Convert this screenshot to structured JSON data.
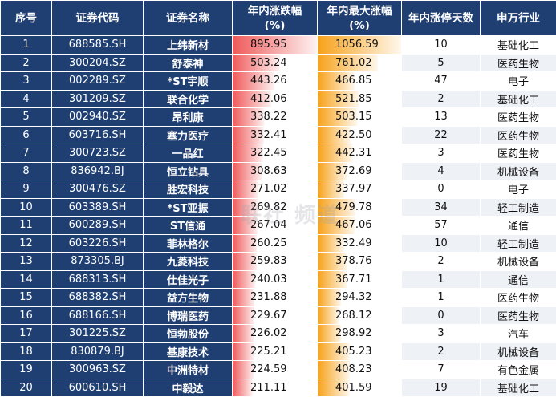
{
  "headers": {
    "seq": "序号",
    "code": "证券代码",
    "name": "证券名称",
    "chg_line1": "年内涨跌幅",
    "chg_line2": "(%)",
    "max_line1": "年内最大涨幅",
    "max_line2": "(%)",
    "days": "年内涨停天数",
    "industry": "申万行业"
  },
  "colors": {
    "header_bg": "#1f3f72",
    "chg_bar": "#f05a5a",
    "max_bar": "#f7a21a"
  },
  "watermark": "联社 频道",
  "rows": [
    {
      "seq": "1",
      "code": "688585.SH",
      "name": "上纬新材",
      "chg": "895.95",
      "max": "1056.59",
      "days": "10",
      "industry": "基础化工"
    },
    {
      "seq": "2",
      "code": "300204.SZ",
      "name": "舒泰神",
      "chg": "503.24",
      "max": "761.02",
      "days": "5",
      "industry": "医药生物"
    },
    {
      "seq": "3",
      "code": "002289.SZ",
      "name": "*ST宇顺",
      "chg": "443.26",
      "max": "466.85",
      "days": "47",
      "industry": "电子"
    },
    {
      "seq": "4",
      "code": "301209.SZ",
      "name": "联合化学",
      "chg": "412.06",
      "max": "521.85",
      "days": "2",
      "industry": "基础化工"
    },
    {
      "seq": "5",
      "code": "002940.SZ",
      "name": "昂利康",
      "chg": "338.22",
      "max": "503.15",
      "days": "13",
      "industry": "医药生物"
    },
    {
      "seq": "6",
      "code": "603716.SH",
      "name": "塞力医疗",
      "chg": "332.41",
      "max": "422.50",
      "days": "22",
      "industry": "医药生物"
    },
    {
      "seq": "7",
      "code": "300723.SZ",
      "name": "一品红",
      "chg": "322.45",
      "max": "442.31",
      "days": "3",
      "industry": "医药生物"
    },
    {
      "seq": "8",
      "code": "836942.BJ",
      "name": "恒立钻具",
      "chg": "308.63",
      "max": "372.69",
      "days": "4",
      "industry": "机械设备"
    },
    {
      "seq": "9",
      "code": "300476.SZ",
      "name": "胜宏科技",
      "chg": "271.02",
      "max": "337.97",
      "days": "0",
      "industry": "电子"
    },
    {
      "seq": "10",
      "code": "603389.SH",
      "name": "*ST亚振",
      "chg": "269.82",
      "max": "479.78",
      "days": "34",
      "industry": "轻工制造"
    },
    {
      "seq": "11",
      "code": "600289.SH",
      "name": "ST信通",
      "chg": "267.04",
      "max": "467.06",
      "days": "57",
      "industry": "通信"
    },
    {
      "seq": "12",
      "code": "603226.SH",
      "name": "菲林格尔",
      "chg": "260.25",
      "max": "332.49",
      "days": "10",
      "industry": "轻工制造"
    },
    {
      "seq": "13",
      "code": "873305.BJ",
      "name": "九菱科技",
      "chg": "259.83",
      "max": "378.76",
      "days": "2",
      "industry": "机械设备"
    },
    {
      "seq": "14",
      "code": "688313.SH",
      "name": "仕佳光子",
      "chg": "240.03",
      "max": "367.71",
      "days": "1",
      "industry": "通信"
    },
    {
      "seq": "15",
      "code": "688382.SH",
      "name": "益方生物",
      "chg": "231.88",
      "max": "294.32",
      "days": "1",
      "industry": "医药生物"
    },
    {
      "seq": "16",
      "code": "688166.SH",
      "name": "博瑞医药",
      "chg": "229.67",
      "max": "268.12",
      "days": "0",
      "industry": "医药生物"
    },
    {
      "seq": "17",
      "code": "301225.SZ",
      "name": "恒勃股份",
      "chg": "226.02",
      "max": "298.92",
      "days": "3",
      "industry": "汽车"
    },
    {
      "seq": "18",
      "code": "830879.BJ",
      "name": "基康技术",
      "chg": "225.21",
      "max": "405.23",
      "days": "2",
      "industry": "机械设备"
    },
    {
      "seq": "19",
      "code": "300963.SZ",
      "name": "中洲特材",
      "chg": "224.59",
      "max": "408.23",
      "days": "7",
      "industry": "有色金属"
    },
    {
      "seq": "20",
      "code": "600610.SH",
      "name": "中毅达",
      "chg": "211.11",
      "max": "401.59",
      "days": "19",
      "industry": "基础化工"
    }
  ]
}
